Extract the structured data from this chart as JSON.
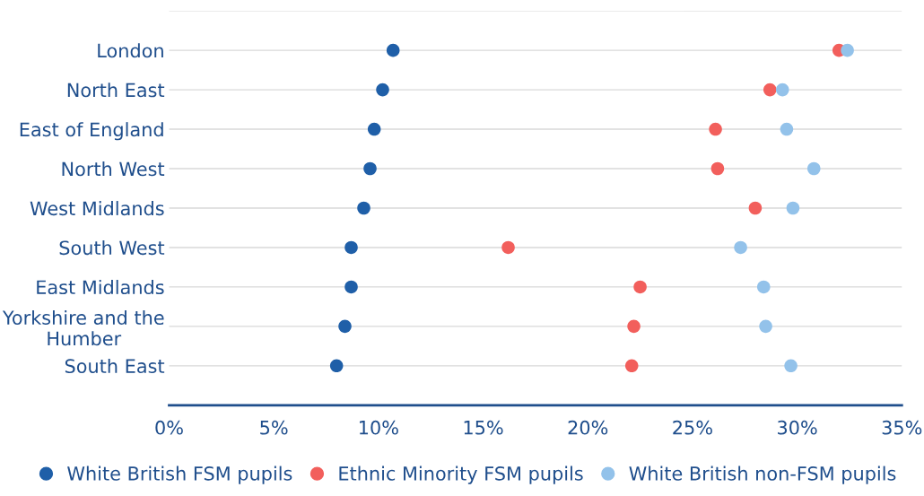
{
  "chart_data": {
    "type": "scatter",
    "categories": [
      "London",
      "North East",
      "East of England",
      "North West",
      "West Midlands",
      "South West",
      "East Midlands",
      "Yorkshire and the Humber",
      "South East"
    ],
    "series": [
      {
        "name": "White British FSM pupils",
        "color": "#1f5fa8",
        "values": [
          10.7,
          10.2,
          9.8,
          9.6,
          9.3,
          8.7,
          8.7,
          8.4,
          8.0
        ]
      },
      {
        "name": "Ethnic Minority FSM pupils",
        "color": "#f25f5c",
        "values": [
          32.0,
          28.7,
          26.1,
          26.2,
          28.0,
          16.2,
          22.5,
          22.2,
          22.1
        ]
      },
      {
        "name": "White British non-FSM pupils",
        "color": "#93c2ea",
        "values": [
          32.4,
          29.3,
          29.5,
          30.8,
          29.8,
          27.3,
          28.4,
          28.5,
          29.7
        ]
      }
    ],
    "orientation": "horizontal",
    "xlim": [
      0,
      35
    ],
    "xticks": [
      {
        "value": 0,
        "label": "0%"
      },
      {
        "value": 5,
        "label": "5%"
      },
      {
        "value": 10,
        "label": "10%"
      },
      {
        "value": 15,
        "label": "15%"
      },
      {
        "value": 20,
        "label": "20%"
      },
      {
        "value": 25,
        "label": "25%"
      },
      {
        "value": 30,
        "label": "30%"
      },
      {
        "value": 35,
        "label": "35%"
      }
    ],
    "grid": "y",
    "legend": "bottom",
    "marker": "circle"
  }
}
